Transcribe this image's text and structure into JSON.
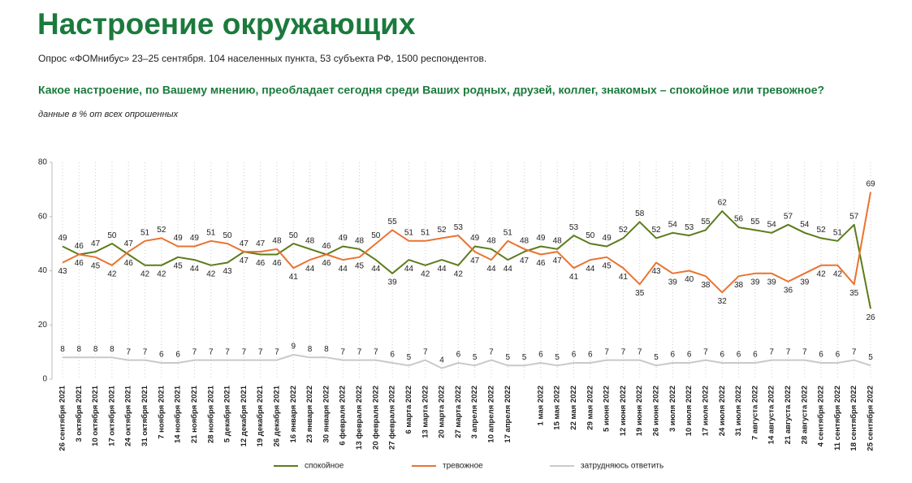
{
  "chart_data": {
    "type": "line",
    "title": "Настроение окружающих",
    "subtitle": "Опрос «ФОМнибус» 23–25 сентября. 104 населенных пункта, 53 субъекта РФ, 1500 респондентов.",
    "question": "Какое настроение, по Вашему мнению, преобладает сегодня среди Ваших родных, друзей, коллег, знакомых – спокойное или тревожное?",
    "note": "данные в % от всех опрошенных",
    "categories": [
      "26 сентября 2021",
      "3 октября 2021",
      "10 октября 2021",
      "17 октября 2021",
      "24 октября 2021",
      "31 октября 2021",
      "7 ноября 2021",
      "14 ноября 2021",
      "21 ноября 2021",
      "28 ноября 2021",
      "5 декабря 2021",
      "12 декабря 2021",
      "19 декабря 2021",
      "26 декабря 2021",
      "16 января 2022",
      "23 января 2022",
      "30 января 2022",
      "6 февраля 2022",
      "13 февраля 2022",
      "20 февраля 2022",
      "27 февраля 2022",
      "6 марта 2022",
      "13 марта 2022",
      "20 марта 2022",
      "27 марта 2022",
      "3 апреля 2022",
      "10 апреля 2022",
      "17 апреля 2022",
      null,
      "1 мая 2022",
      "15 мая 2022",
      "22 мая 2022",
      "29 мая 2022",
      "5 июня 2022",
      "12 июня 2022",
      "19 июня 2022",
      "26 июня 2022",
      "3 июля 2022",
      "10 июля 2022",
      "17 июля 2022",
      "24 июля 2022",
      "31 июля 2022",
      "7 августа 2022",
      "14 августа 2022",
      "21 августа 2022",
      "28 августа 2022",
      "4 сентября 2022",
      "11 сентября 2022",
      "18 сентября 2022",
      "25 сентября 2022"
    ],
    "series": [
      {
        "name": "спокойное",
        "color": "#5b7c1c",
        "values": [
          49,
          46,
          47,
          50,
          46,
          42,
          42,
          45,
          44,
          42,
          43,
          47,
          46,
          46,
          50,
          48,
          46,
          49,
          48,
          44,
          39,
          44,
          42,
          44,
          42,
          49,
          48,
          44,
          47,
          49,
          48,
          53,
          50,
          49,
          52,
          58,
          52,
          54,
          53,
          55,
          62,
          56,
          55,
          54,
          57,
          54,
          52,
          51,
          57,
          26
        ]
      },
      {
        "name": "тревожное",
        "color": "#ea7330",
        "values": [
          43,
          46,
          45,
          42,
          47,
          51,
          52,
          49,
          49,
          51,
          50,
          47,
          47,
          48,
          41,
          44,
          46,
          44,
          45,
          50,
          55,
          51,
          51,
          52,
          53,
          47,
          44,
          51,
          48,
          46,
          47,
          41,
          44,
          45,
          41,
          35,
          43,
          39,
          40,
          38,
          32,
          38,
          39,
          39,
          36,
          39,
          42,
          42,
          35,
          69
        ]
      },
      {
        "name": "затрудняюсь ответить",
        "color": "#c9c9c9",
        "values": [
          8,
          8,
          8,
          8,
          7,
          7,
          6,
          6,
          7,
          7,
          7,
          7,
          7,
          7,
          9,
          8,
          8,
          7,
          7,
          7,
          6,
          5,
          7,
          4,
          6,
          5,
          7,
          5,
          5,
          6,
          5,
          6,
          6,
          7,
          7,
          7,
          5,
          6,
          6,
          7,
          6,
          6,
          6,
          7,
          7,
          7,
          6,
          6,
          7,
          5
        ]
      }
    ],
    "ylim": [
      0,
      80
    ],
    "yticks": [
      0,
      20,
      40,
      60,
      80
    ],
    "grid": "vertical",
    "legend": "bottom"
  }
}
